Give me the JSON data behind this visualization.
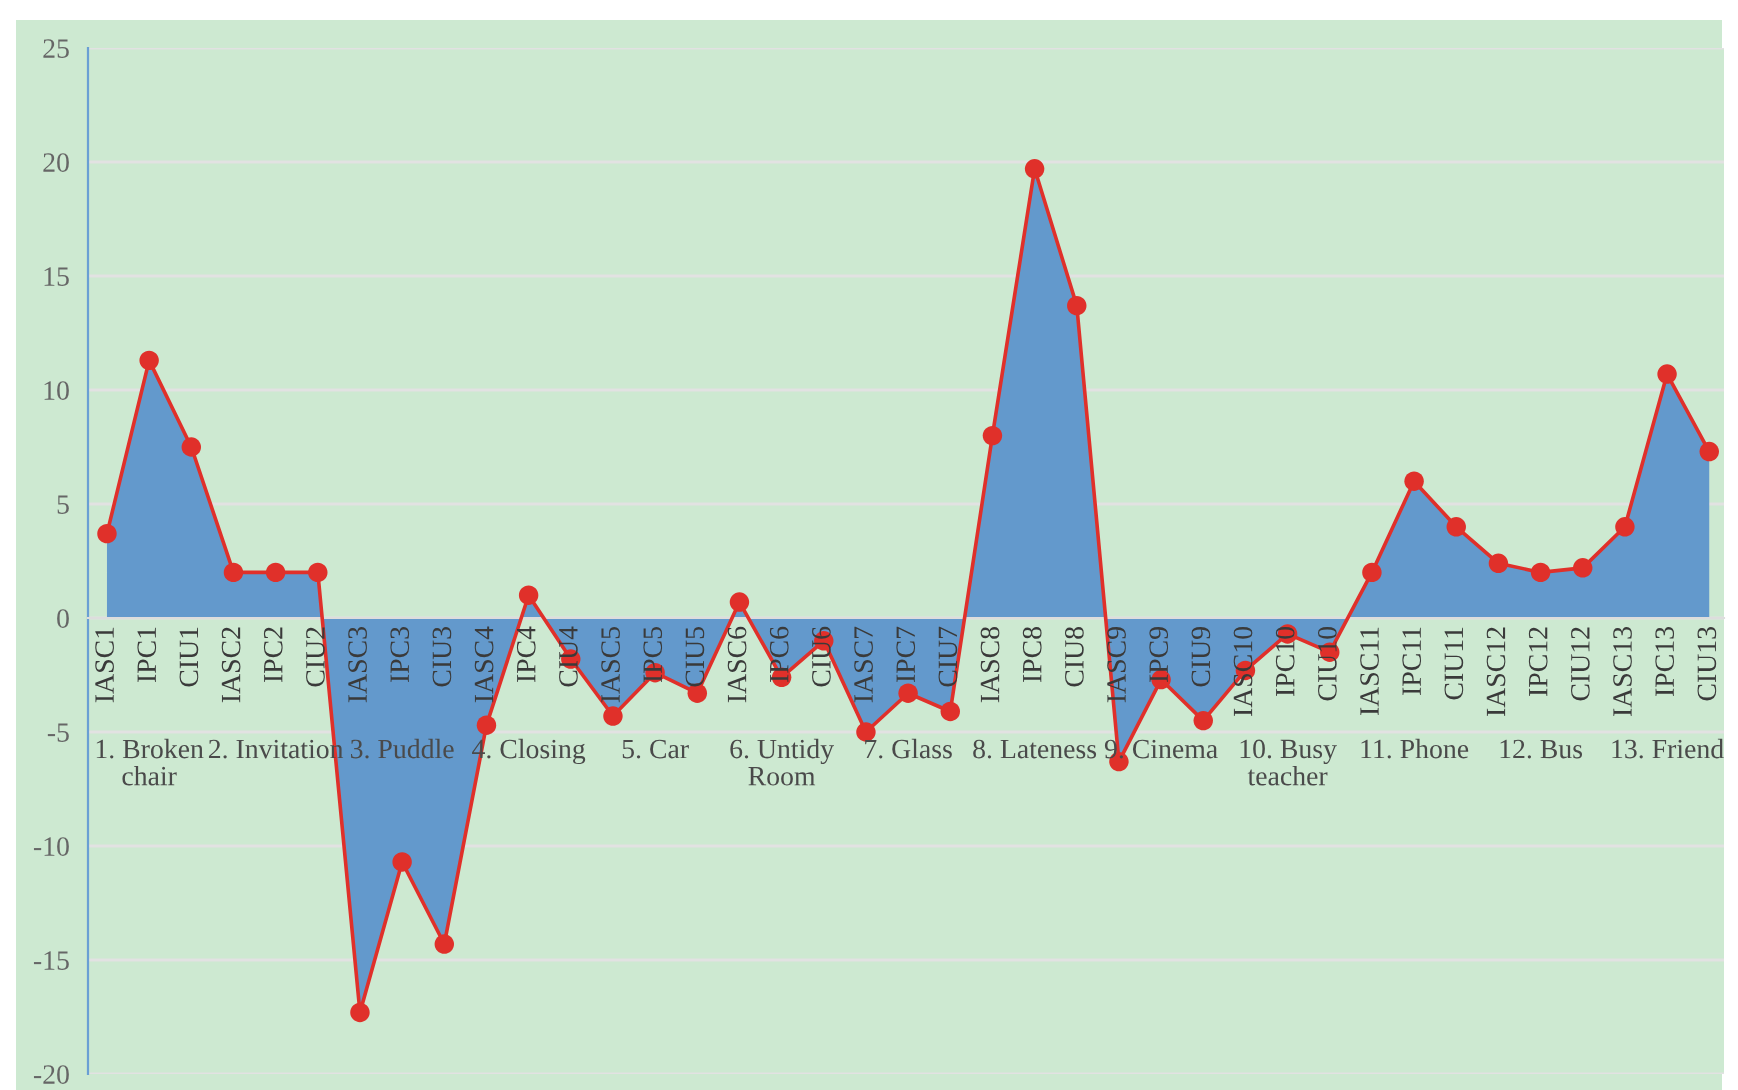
{
  "chart_data": {
    "type": "area",
    "categories": [
      "IASC1",
      "IPC1",
      "CIU1",
      "IASC2",
      "IPC2",
      "CIU2",
      "IASC3",
      "IPC3",
      "CIU3",
      "IASC4",
      "IPC4",
      "CIU4",
      "IASC5",
      "IPC5",
      "CIU5",
      "IASC6",
      "IPC6",
      "CIU6",
      "IASC7",
      "IPC7",
      "CIU7",
      "IASC8",
      "IPC8",
      "CIU8",
      "IASC9",
      "IPC9",
      "CIU9",
      "IASC10",
      "IPC10",
      "CIU10",
      "IASC11",
      "IPC11",
      "CIU11",
      "IASC12",
      "IPC12",
      "CIU12",
      "IASC13",
      "IPC13",
      "CIU13"
    ],
    "series": [
      {
        "color": "#6399cc",
        "values": [
          3.7,
          11.3,
          7.5,
          2.0,
          2.0,
          2.0,
          -17.3,
          -10.7,
          -14.3,
          -4.7,
          1.0,
          -1.8,
          -4.3,
          -2.4,
          -3.3,
          0.7,
          -2.6,
          -1.0,
          -5.0,
          -3.3,
          -4.1,
          8.0,
          19.7,
          13.7,
          -6.3,
          -2.7,
          -4.5,
          -2.3,
          -0.7,
          -1.5,
          2.0,
          6.0,
          4.0,
          2.4,
          2.0,
          2.2,
          4.0,
          10.7,
          7.3
        ],
        "colors": [
          "#e0302a",
          "#e0302a",
          "#e0302a",
          "#e0302a",
          "#e0302a",
          "#e0302a",
          "#e0302a",
          "#e0302a",
          "#e0302a",
          "#e0302a",
          "#e0302a",
          "#e0302a",
          "#e0302a",
          "#e0302a",
          "#e0302a",
          "#e0302a",
          "#e0302a",
          "#e0302a",
          "#e0302a",
          "#e0302a",
          "#e0302a",
          "#e0302a",
          "#e0302a",
          "#e0302a",
          "#e0302a",
          "#e0302a",
          "#e0302a",
          "#e0302a",
          "#e0302a",
          "#e0302a",
          "#e0302a",
          "#e0302a",
          "#e0302a",
          "#e0302a",
          "#e0302a",
          "#e0302a",
          "#e0302a",
          "#e0302a",
          "#e0302a"
        ]
      }
    ],
    "marker": "circle",
    "annotations": [
      "1. Broken\nchair",
      "2. Invitation",
      "3. Puddle",
      "4. Closing",
      "5. Car",
      "6. Untidy\nRoom",
      "7. Glass",
      "8. Lateness",
      "9. Cinema",
      "10. Busy\nteacher",
      "11. Phone",
      "12. Bus",
      "13. Friend"
    ],
    "ylim": [
      -20,
      25
    ],
    "yticks": [
      -20,
      -15,
      -10,
      -5,
      0,
      5,
      10,
      15,
      20,
      25
    ],
    "grid": "y"
  }
}
